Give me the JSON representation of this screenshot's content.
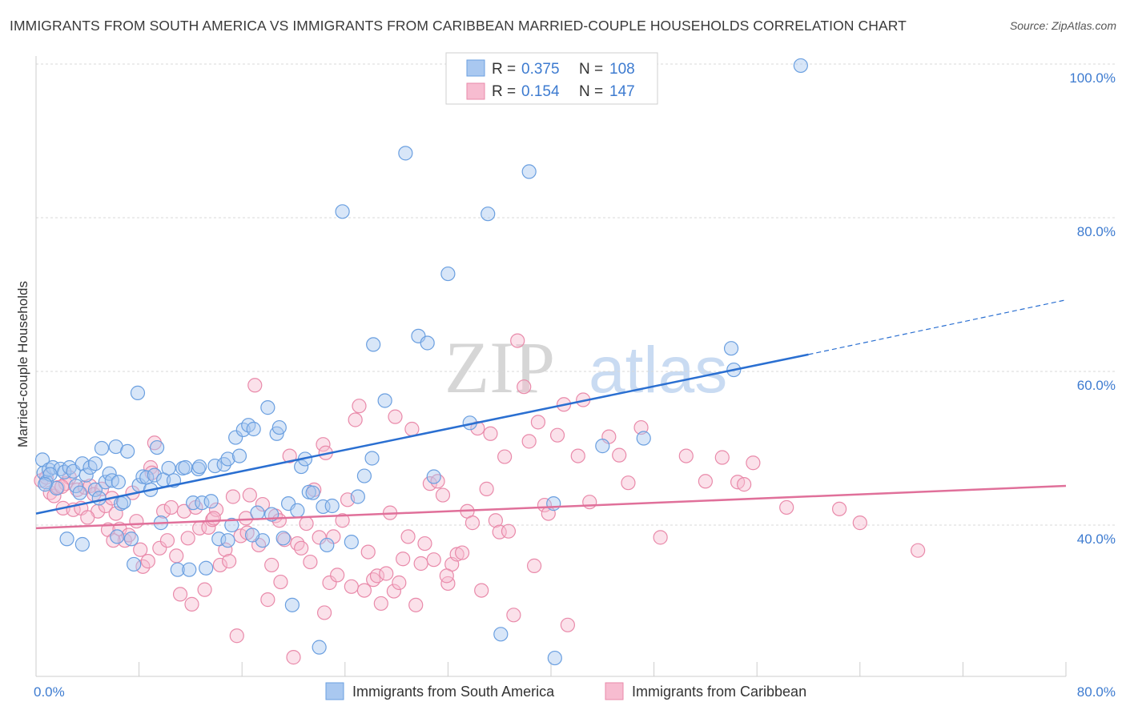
{
  "title": "IMMIGRANTS FROM SOUTH AMERICA VS IMMIGRANTS FROM CARIBBEAN MARRIED-COUPLE HOUSEHOLDS CORRELATION CHART",
  "source": "Source: ZipAtlas.com",
  "watermark": {
    "zip": "ZIP",
    "atlas": "atlas"
  },
  "colors": {
    "blue_fill": "#a9c8f0",
    "blue_stroke": "#6a9fe0",
    "blue_line": "#2a6fd1",
    "pink_fill": "#f7bcd0",
    "pink_stroke": "#e98aaa",
    "pink_line": "#e0709a",
    "grid": "#d8d8d8",
    "axis_label": "#3d7bd0"
  },
  "legend": {
    "rows": [
      {
        "r_label": "R =",
        "r_value": "0.375",
        "n_label": "N =",
        "n_value": "108"
      },
      {
        "r_label": "R =",
        "r_value": "0.154",
        "n_label": "N =",
        "n_value": "147"
      }
    ]
  },
  "chart_data": {
    "type": "scatter",
    "title": "IMMIGRANTS FROM SOUTH AMERICA VS IMMIGRANTS FROM CARIBBEAN MARRIED-COUPLE HOUSEHOLDS CORRELATION CHART",
    "xlabel": "",
    "ylabel": "Married-couple Households",
    "xlim": [
      0,
      80
    ],
    "ylim": [
      20,
      102
    ],
    "x_tick_labels": [
      "0.0%",
      "80.0%"
    ],
    "y_ticks": [
      40,
      60,
      80,
      100
    ],
    "y_tick_labels": [
      "40.0%",
      "60.0%",
      "80.0%",
      "100.0%"
    ],
    "grid": true,
    "legend_position": "top-center",
    "series": [
      {
        "name": "Immigrants from South America",
        "R": 0.375,
        "N": 108,
        "trend": {
          "x": [
            0,
            60
          ],
          "y": [
            41.5,
            62.2
          ],
          "dashed_to": [
            80,
            69.3
          ]
        },
        "points": [
          [
            0.5,
            48.5
          ],
          [
            0.6,
            46.8
          ],
          [
            0.8,
            45.6
          ],
          [
            1.0,
            47.2
          ],
          [
            1.3,
            47.5
          ],
          [
            1.6,
            44.8
          ],
          [
            1.9,
            47.3
          ],
          [
            2.2,
            46.9
          ],
          [
            2.6,
            47.5
          ],
          [
            2.9,
            47.0
          ],
          [
            3.1,
            45.1
          ],
          [
            3.4,
            44.2
          ],
          [
            3.6,
            48.0
          ],
          [
            3.9,
            46.5
          ],
          [
            4.2,
            47.5
          ],
          [
            4.6,
            44.6
          ],
          [
            4.9,
            43.5
          ],
          [
            5.1,
            50.0
          ],
          [
            5.4,
            45.6
          ],
          [
            5.7,
            46.7
          ],
          [
            5.9,
            45.8
          ],
          [
            6.2,
            50.2
          ],
          [
            6.4,
            45.6
          ],
          [
            6.6,
            42.8
          ],
          [
            6.8,
            43.0
          ],
          [
            7.1,
            49.6
          ],
          [
            7.4,
            38.2
          ],
          [
            7.6,
            34.9
          ],
          [
            8.0,
            45.2
          ],
          [
            8.3,
            46.3
          ],
          [
            8.6,
            46.2
          ],
          [
            8.9,
            44.6
          ],
          [
            9.2,
            46.5
          ],
          [
            9.4,
            50.1
          ],
          [
            9.7,
            40.3
          ],
          [
            9.9,
            45.9
          ],
          [
            10.3,
            47.4
          ],
          [
            10.7,
            45.8
          ],
          [
            11.0,
            34.2
          ],
          [
            11.4,
            47.4
          ],
          [
            11.9,
            34.2
          ],
          [
            12.2,
            42.9
          ],
          [
            12.6,
            47.3
          ],
          [
            12.9,
            42.9
          ],
          [
            13.2,
            34.4
          ],
          [
            13.6,
            43.1
          ],
          [
            13.9,
            47.7
          ],
          [
            14.2,
            38.2
          ],
          [
            14.6,
            47.9
          ],
          [
            14.9,
            48.6
          ],
          [
            15.2,
            40.0
          ],
          [
            15.5,
            51.4
          ],
          [
            15.8,
            49.0
          ],
          [
            16.1,
            52.4
          ],
          [
            16.5,
            53.0
          ],
          [
            16.9,
            52.5
          ],
          [
            17.2,
            41.6
          ],
          [
            17.6,
            38.0
          ],
          [
            18.0,
            55.3
          ],
          [
            18.3,
            41.4
          ],
          [
            18.7,
            51.9
          ],
          [
            18.9,
            52.7
          ],
          [
            19.2,
            38.3
          ],
          [
            19.6,
            42.8
          ],
          [
            19.9,
            29.6
          ],
          [
            20.3,
            41.9
          ],
          [
            20.6,
            47.6
          ],
          [
            20.9,
            48.6
          ],
          [
            21.2,
            44.3
          ],
          [
            21.5,
            44.2
          ],
          [
            22.0,
            24.1
          ],
          [
            22.3,
            42.4
          ],
          [
            22.6,
            37.4
          ],
          [
            23.0,
            42.5
          ],
          [
            23.8,
            80.8
          ],
          [
            24.5,
            37.8
          ],
          [
            25.0,
            43.7
          ],
          [
            25.5,
            46.4
          ],
          [
            26.1,
            48.7
          ],
          [
            26.2,
            63.5
          ],
          [
            27.1,
            56.2
          ],
          [
            28.7,
            88.4
          ],
          [
            29.7,
            64.6
          ],
          [
            30.4,
            63.7
          ],
          [
            30.9,
            46.3
          ],
          [
            32.0,
            72.7
          ],
          [
            33.7,
            53.3
          ],
          [
            35.1,
            80.5
          ],
          [
            36.1,
            25.8
          ],
          [
            38.3,
            86.0
          ],
          [
            40.2,
            42.8
          ],
          [
            40.3,
            22.7
          ],
          [
            44.0,
            50.3
          ],
          [
            47.2,
            51.3
          ],
          [
            54.0,
            63.0
          ],
          [
            54.2,
            60.2
          ],
          [
            59.4,
            99.8
          ],
          [
            12.7,
            47.6
          ],
          [
            6.3,
            38.5
          ],
          [
            2.4,
            38.2
          ],
          [
            7.9,
            57.2
          ],
          [
            14.9,
            38.0
          ],
          [
            3.6,
            37.5
          ],
          [
            11.6,
            47.5
          ],
          [
            16.8,
            38.7
          ],
          [
            1.1,
            46.6
          ],
          [
            4.6,
            48.0
          ],
          [
            0.7,
            45.3
          ]
        ]
      },
      {
        "name": "Immigrants from Caribbean",
        "R": 0.154,
        "N": 147,
        "trend": {
          "x": [
            0,
            80
          ],
          "y": [
            39.6,
            45.1
          ]
        },
        "points": [
          [
            0.4,
            45.8
          ],
          [
            0.8,
            46.2
          ],
          [
            1.1,
            44.2
          ],
          [
            1.4,
            43.8
          ],
          [
            1.7,
            44.9
          ],
          [
            2.1,
            42.2
          ],
          [
            2.3,
            45.4
          ],
          [
            2.6,
            46.2
          ],
          [
            2.9,
            42.0
          ],
          [
            3.2,
            44.6
          ],
          [
            3.5,
            42.2
          ],
          [
            3.8,
            44.9
          ],
          [
            4.2,
            45.1
          ],
          [
            4.5,
            44.0
          ],
          [
            4.8,
            41.8
          ],
          [
            5.1,
            44.7
          ],
          [
            5.4,
            42.5
          ],
          [
            5.6,
            39.4
          ],
          [
            5.9,
            43.5
          ],
          [
            6.2,
            41.5
          ],
          [
            6.5,
            39.5
          ],
          [
            6.9,
            38.0
          ],
          [
            7.2,
            38.7
          ],
          [
            7.5,
            44.2
          ],
          [
            7.8,
            40.5
          ],
          [
            8.1,
            36.8
          ],
          [
            8.3,
            34.6
          ],
          [
            8.7,
            35.3
          ],
          [
            8.9,
            47.5
          ],
          [
            9.2,
            50.7
          ],
          [
            9.6,
            37.0
          ],
          [
            9.9,
            41.8
          ],
          [
            10.2,
            38.0
          ],
          [
            10.5,
            42.3
          ],
          [
            10.9,
            36.0
          ],
          [
            11.2,
            31.0
          ],
          [
            11.5,
            41.8
          ],
          [
            11.8,
            38.3
          ],
          [
            12.1,
            29.7
          ],
          [
            12.4,
            42.3
          ],
          [
            12.7,
            39.6
          ],
          [
            13.1,
            31.6
          ],
          [
            13.4,
            39.7
          ],
          [
            13.7,
            40.7
          ],
          [
            14.0,
            42.0
          ],
          [
            14.3,
            34.8
          ],
          [
            14.7,
            36.8
          ],
          [
            15.0,
            35.3
          ],
          [
            15.3,
            43.7
          ],
          [
            15.6,
            25.6
          ],
          [
            15.9,
            38.6
          ],
          [
            16.3,
            40.9
          ],
          [
            16.6,
            43.9
          ],
          [
            17.0,
            58.2
          ],
          [
            17.3,
            37.4
          ],
          [
            17.6,
            42.7
          ],
          [
            18.0,
            30.3
          ],
          [
            18.3,
            34.8
          ],
          [
            18.6,
            41.2
          ],
          [
            19.0,
            32.6
          ],
          [
            19.3,
            38.1
          ],
          [
            19.7,
            49.0
          ],
          [
            20.0,
            22.8
          ],
          [
            20.3,
            37.6
          ],
          [
            20.6,
            37.0
          ],
          [
            21.0,
            40.2
          ],
          [
            21.3,
            35.2
          ],
          [
            21.6,
            44.6
          ],
          [
            22.0,
            38.4
          ],
          [
            22.3,
            50.5
          ],
          [
            22.5,
            49.4
          ],
          [
            22.8,
            32.5
          ],
          [
            23.1,
            38.5
          ],
          [
            23.4,
            33.5
          ],
          [
            23.8,
            40.6
          ],
          [
            24.2,
            43.3
          ],
          [
            24.5,
            32.0
          ],
          [
            24.8,
            53.7
          ],
          [
            25.1,
            55.5
          ],
          [
            25.5,
            31.5
          ],
          [
            25.8,
            36.5
          ],
          [
            26.2,
            32.9
          ],
          [
            26.5,
            33.4
          ],
          [
            26.8,
            29.8
          ],
          [
            27.2,
            33.7
          ],
          [
            27.5,
            41.6
          ],
          [
            27.8,
            31.4
          ],
          [
            28.2,
            32.5
          ],
          [
            28.5,
            35.6
          ],
          [
            28.9,
            38.5
          ],
          [
            29.2,
            52.5
          ],
          [
            29.5,
            29.6
          ],
          [
            29.9,
            35.0
          ],
          [
            30.2,
            37.6
          ],
          [
            30.6,
            45.4
          ],
          [
            30.9,
            35.5
          ],
          [
            31.2,
            45.7
          ],
          [
            31.6,
            43.9
          ],
          [
            32.0,
            32.4
          ],
          [
            32.3,
            34.9
          ],
          [
            32.7,
            36.2
          ],
          [
            33.1,
            36.4
          ],
          [
            33.5,
            41.8
          ],
          [
            33.9,
            40.3
          ],
          [
            34.3,
            52.6
          ],
          [
            34.6,
            31.5
          ],
          [
            35.0,
            44.7
          ],
          [
            35.3,
            51.9
          ],
          [
            35.7,
            40.6
          ],
          [
            36.0,
            39.1
          ],
          [
            36.4,
            48.9
          ],
          [
            36.7,
            39.2
          ],
          [
            37.1,
            28.3
          ],
          [
            37.4,
            64.0
          ],
          [
            37.9,
            58.0
          ],
          [
            38.3,
            50.9
          ],
          [
            38.7,
            34.7
          ],
          [
            39.0,
            53.4
          ],
          [
            39.5,
            42.6
          ],
          [
            39.8,
            41.5
          ],
          [
            40.5,
            51.7
          ],
          [
            41.0,
            55.7
          ],
          [
            41.3,
            27.0
          ],
          [
            42.1,
            49.0
          ],
          [
            42.5,
            56.3
          ],
          [
            43.0,
            43.0
          ],
          [
            44.5,
            51.5
          ],
          [
            45.3,
            49.1
          ],
          [
            46.0,
            45.5
          ],
          [
            47.0,
            52.7
          ],
          [
            48.5,
            38.4
          ],
          [
            50.5,
            49.0
          ],
          [
            52.0,
            45.7
          ],
          [
            53.3,
            48.8
          ],
          [
            54.5,
            45.6
          ],
          [
            55.0,
            45.3
          ],
          [
            55.7,
            48.1
          ],
          [
            58.3,
            42.3
          ],
          [
            62.4,
            42.1
          ],
          [
            64.0,
            40.3
          ],
          [
            68.5,
            36.7
          ],
          [
            22.4,
            28.6
          ],
          [
            13.8,
            40.9
          ],
          [
            18.9,
            40.6
          ],
          [
            27.9,
            54.1
          ],
          [
            9.0,
            46.8
          ],
          [
            4.0,
            41.0
          ],
          [
            16.4,
            39.0
          ],
          [
            31.9,
            33.4
          ],
          [
            2.0,
            45.0
          ],
          [
            6.0,
            38.0
          ]
        ]
      }
    ]
  },
  "bottom_legend": [
    {
      "label": "Immigrants from South America"
    },
    {
      "label": "Immigrants from Caribbean"
    }
  ]
}
